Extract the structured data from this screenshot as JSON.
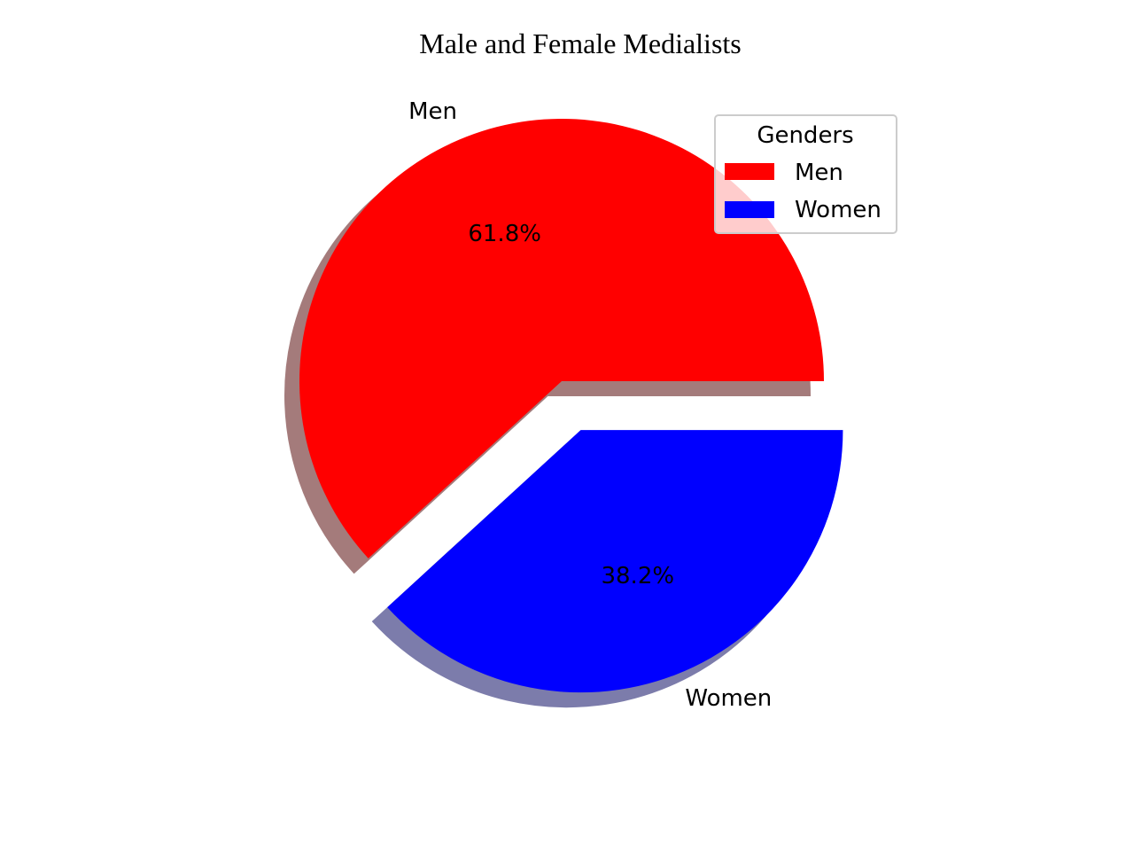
{
  "chart_data": {
    "type": "pie",
    "title": "Male and Female Medialists",
    "slices": [
      {
        "label": "Men",
        "value": 61.8,
        "percent_label": "61.8%",
        "color": "#ff0000",
        "shadow_color": "#a47b7b",
        "exploded": false
      },
      {
        "label": "Women",
        "value": 38.2,
        "percent_label": "38.2%",
        "color": "#0000ff",
        "shadow_color": "#7c7cab",
        "exploded": true
      }
    ],
    "legend": {
      "title": "Genders",
      "entries": [
        "Men",
        "Women"
      ],
      "placement": "top-right"
    },
    "start_angle_deg": 0,
    "shadow": true
  }
}
